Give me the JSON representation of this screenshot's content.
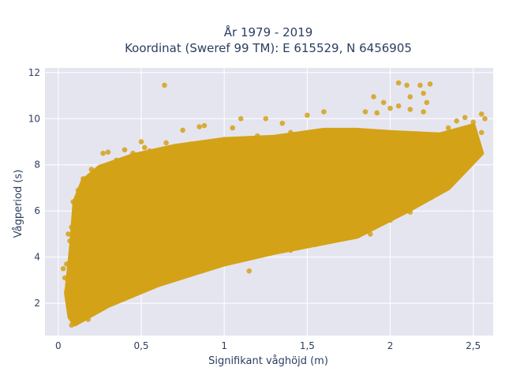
{
  "chart_data": {
    "type": "scatter",
    "title_lines": [
      "År 1979 - 2019",
      "Koordinat (Sweref 99 TM): E 615529, N 6456905"
    ],
    "xlabel": "Signifikant våghöjd (m)",
    "ylabel": "Vågperiod (s)",
    "xlim": [
      -0.08,
      2.62
    ],
    "ylim": [
      0.6,
      12.2
    ],
    "x_ticks": [
      0,
      0.5,
      1,
      1.5,
      2,
      2.5
    ],
    "x_tick_labels": [
      "0",
      "0,5",
      "1",
      "1,5",
      "2",
      "2,5"
    ],
    "y_ticks": [
      2,
      4,
      6,
      8,
      10,
      12
    ],
    "y_tick_labels": [
      "2",
      "4",
      "6",
      "8",
      "10",
      "12"
    ],
    "grid": true,
    "legend": "none",
    "marker_color": "#d4a217",
    "plot_background": "#e5e5f0",
    "dense_region_polygon": [
      [
        0.05,
        2.4
      ],
      [
        0.07,
        1.4
      ],
      [
        0.1,
        1.1
      ],
      [
        0.3,
        1.9
      ],
      [
        0.6,
        2.8
      ],
      [
        1.0,
        3.7
      ],
      [
        1.3,
        4.2
      ],
      [
        1.8,
        4.9
      ],
      [
        2.1,
        6.0
      ],
      [
        2.35,
        7.0
      ],
      [
        2.55,
        8.5
      ],
      [
        2.5,
        9.7
      ],
      [
        2.3,
        9.3
      ],
      [
        2.0,
        9.4
      ],
      [
        1.8,
        9.5
      ],
      [
        1.6,
        9.5
      ],
      [
        1.3,
        9.2
      ],
      [
        1.0,
        9.1
      ],
      [
        0.7,
        8.8
      ],
      [
        0.45,
        8.4
      ],
      [
        0.25,
        7.9
      ],
      [
        0.15,
        7.3
      ],
      [
        0.1,
        6.4
      ],
      [
        0.08,
        4.5
      ]
    ],
    "points": [
      [
        0.64,
        11.45
      ],
      [
        2.05,
        11.55
      ],
      [
        2.1,
        11.45
      ],
      [
        2.18,
        11.45
      ],
      [
        2.24,
        11.5
      ],
      [
        1.9,
        10.95
      ],
      [
        2.12,
        10.95
      ],
      [
        2.2,
        11.1
      ],
      [
        1.96,
        10.7
      ],
      [
        2.05,
        10.55
      ],
      [
        1.92,
        10.25
      ],
      [
        2.0,
        10.45
      ],
      [
        2.12,
        10.4
      ],
      [
        2.2,
        10.3
      ],
      [
        2.22,
        10.7
      ],
      [
        2.45,
        10.05
      ],
      [
        2.5,
        9.85
      ],
      [
        2.55,
        10.2
      ],
      [
        2.57,
        10.0
      ],
      [
        2.4,
        9.9
      ],
      [
        1.85,
        10.3
      ],
      [
        1.6,
        10.3
      ],
      [
        1.5,
        10.15
      ],
      [
        1.25,
        10.0
      ],
      [
        1.1,
        10.0
      ],
      [
        0.88,
        9.7
      ],
      [
        0.75,
        9.5
      ],
      [
        0.85,
        9.65
      ],
      [
        1.35,
        9.8
      ],
      [
        1.05,
        9.6
      ],
      [
        0.55,
        8.6
      ],
      [
        0.52,
        8.75
      ],
      [
        0.3,
        8.55
      ],
      [
        0.27,
        8.5
      ],
      [
        0.4,
        8.65
      ],
      [
        0.5,
        9.0
      ],
      [
        0.45,
        8.5
      ],
      [
        0.65,
        8.95
      ],
      [
        1.95,
        9.1
      ],
      [
        2.35,
        9.6
      ],
      [
        2.45,
        9.2
      ],
      [
        2.55,
        9.4
      ],
      [
        2.3,
        8.6
      ],
      [
        2.2,
        8.0
      ],
      [
        2.3,
        7.2
      ],
      [
        2.15,
        6.9
      ],
      [
        2.2,
        7.4
      ],
      [
        1.92,
        6.1
      ],
      [
        1.95,
        5.9
      ],
      [
        2.1,
        6.3
      ],
      [
        1.85,
        5.6
      ],
      [
        1.78,
        5.3
      ],
      [
        1.95,
        5.75
      ],
      [
        2.05,
        6.1
      ],
      [
        1.7,
        5.2
      ],
      [
        1.6,
        4.75
      ],
      [
        1.75,
        4.85
      ],
      [
        1.5,
        4.85
      ],
      [
        1.35,
        4.9
      ],
      [
        1.42,
        4.7
      ],
      [
        1.3,
        4.5
      ],
      [
        1.2,
        4.2
      ],
      [
        1.12,
        4.2
      ],
      [
        1.0,
        3.8
      ],
      [
        1.15,
        3.4
      ],
      [
        0.92,
        3.65
      ],
      [
        0.8,
        3.3
      ],
      [
        0.6,
        2.9
      ],
      [
        0.45,
        2.6
      ],
      [
        0.3,
        2.2
      ],
      [
        0.2,
        1.85
      ],
      [
        0.12,
        1.25
      ],
      [
        0.09,
        1.15
      ],
      [
        0.08,
        1.05
      ],
      [
        0.1,
        1.7
      ],
      [
        0.06,
        2.0
      ],
      [
        0.05,
        2.5
      ],
      [
        0.04,
        3.1
      ],
      [
        0.03,
        3.5
      ],
      [
        0.05,
        3.7
      ],
      [
        0.07,
        4.7
      ],
      [
        0.06,
        5.0
      ],
      [
        0.08,
        5.3
      ],
      [
        0.1,
        6.0
      ],
      [
        0.09,
        6.4
      ],
      [
        0.12,
        6.9
      ],
      [
        0.15,
        7.4
      ],
      [
        0.2,
        7.8
      ],
      [
        0.25,
        7.9
      ],
      [
        0.35,
        8.2
      ],
      [
        0.4,
        8.1
      ],
      [
        0.6,
        8.5
      ],
      [
        0.7,
        8.7
      ],
      [
        0.8,
        8.9
      ],
      [
        0.9,
        8.95
      ],
      [
        1.0,
        9.1
      ],
      [
        1.2,
        9.25
      ],
      [
        1.4,
        9.4
      ],
      [
        1.6,
        9.45
      ],
      [
        1.8,
        9.4
      ],
      [
        2.0,
        9.4
      ],
      [
        2.2,
        9.3
      ],
      [
        2.42,
        8.8
      ],
      [
        2.5,
        8.2
      ],
      [
        2.48,
        8.9
      ],
      [
        2.3,
        7.8
      ],
      [
        2.25,
        6.6
      ],
      [
        2.12,
        5.95
      ],
      [
        2.0,
        5.6
      ],
      [
        1.88,
        5.0
      ],
      [
        1.55,
        4.55
      ],
      [
        1.4,
        4.3
      ],
      [
        1.1,
        3.9
      ],
      [
        0.9,
        3.5
      ],
      [
        0.7,
        3.1
      ],
      [
        0.5,
        2.7
      ],
      [
        0.35,
        2.3
      ],
      [
        0.25,
        2.0
      ],
      [
        0.15,
        1.6
      ],
      [
        0.18,
        1.3
      ]
    ]
  }
}
